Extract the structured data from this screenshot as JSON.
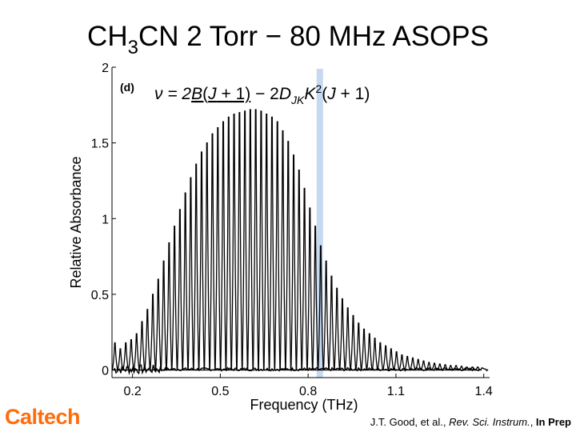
{
  "slide": {
    "title_main": "CH",
    "title_sub": "3",
    "title_rest": "CN 2 Torr − 80 MHz ASOPS",
    "logo": "Caltech",
    "citation_authors": "J.T. Good, et al., ",
    "citation_journal": "Rev. Sci. Instrum.",
    "citation_sep": ", ",
    "citation_status": "In Prep"
  },
  "chart_data": {
    "type": "line",
    "title": "",
    "panel_label": "(d)",
    "equation": "ν = 2B(J + 1) − 2DJKK2(J + 1)",
    "xlabel": "Frequency (THz)",
    "ylabel": "Relative Absorbance",
    "xlim": [
      0.13,
      1.42
    ],
    "ylim": [
      -0.05,
      2.0
    ],
    "x_ticks": [
      0.2,
      0.5,
      0.8,
      1.1,
      1.4
    ],
    "x_tick_labels": [
      "0.2",
      "0.5",
      "0.8",
      "1.1",
      "1.4"
    ],
    "y_ticks": [
      0,
      0.5,
      1,
      1.5,
      2
    ],
    "y_tick_labels": [
      "0",
      "0.5",
      "1",
      "1.5",
      "2"
    ],
    "highlight_x": 0.84,
    "highlight_color": "#C5D9F1",
    "line_color": "#000000",
    "grid": false,
    "series": [
      {
        "x": [
          0.14,
          0.1585,
          0.177,
          0.1955,
          0.214,
          0.2325,
          0.251,
          0.2695,
          0.288,
          0.3065,
          0.325,
          0.3435,
          0.362,
          0.3805,
          0.399,
          0.4175,
          0.436,
          0.4545,
          0.473,
          0.4915,
          0.51,
          0.5285,
          0.547,
          0.5655,
          0.584,
          0.6025,
          0.621,
          0.6395,
          0.658,
          0.6765,
          0.695,
          0.7135,
          0.732,
          0.7505,
          0.769,
          0.7875,
          0.806,
          0.8245,
          0.843,
          0.8615,
          0.88,
          0.8985,
          0.917,
          0.9355,
          0.954,
          0.9725,
          0.991,
          1.0095,
          1.028,
          1.0465,
          1.065,
          1.0835,
          1.102,
          1.1205,
          1.139,
          1.1575,
          1.176,
          1.1945,
          1.213,
          1.2315,
          1.25,
          1.2685,
          1.287,
          1.3055,
          1.324,
          1.3425,
          1.361,
          1.3795
        ],
        "y": [
          0.18,
          0.14,
          0.18,
          0.2,
          0.24,
          0.32,
          0.4,
          0.5,
          0.6,
          0.72,
          0.84,
          0.95,
          1.06,
          1.17,
          1.27,
          1.36,
          1.44,
          1.5,
          1.56,
          1.6,
          1.64,
          1.67,
          1.69,
          1.7,
          1.71,
          1.72,
          1.72,
          1.71,
          1.69,
          1.67,
          1.64,
          1.58,
          1.51,
          1.42,
          1.32,
          1.2,
          1.07,
          0.95,
          0.82,
          0.72,
          0.62,
          0.54,
          0.47,
          0.41,
          0.36,
          0.31,
          0.27,
          0.24,
          0.21,
          0.18,
          0.16,
          0.14,
          0.12,
          0.1,
          0.09,
          0.08,
          0.07,
          0.06,
          0.05,
          0.045,
          0.04,
          0.035,
          0.03,
          0.03,
          0.025,
          0.02,
          0.02,
          0.02
        ]
      }
    ]
  }
}
